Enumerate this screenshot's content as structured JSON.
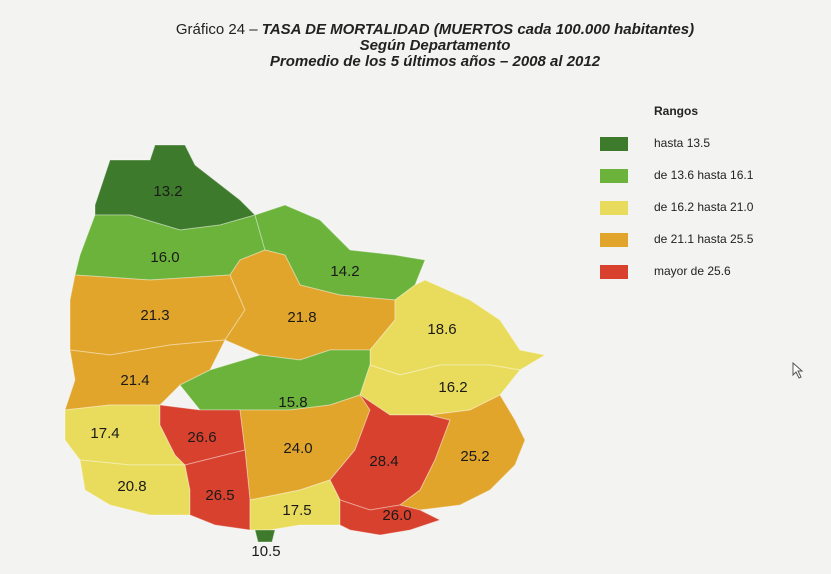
{
  "title": {
    "prefix": "Gráfico 24 –",
    "main": "TASA DE MORTALIDAD (MUERTOS cada 100.000 habitantes)",
    "line2": "Según Departamento",
    "line3": "Promedio de los 5 últimos años – 2008 al 2012"
  },
  "legend": {
    "title": "Rangos",
    "items": [
      {
        "label": "hasta 13.5",
        "color": "#3e7a2c"
      },
      {
        "label": "de 13.6 hasta 16.1",
        "color": "#6cb33c"
      },
      {
        "label": "de 16.2 hasta 21.0",
        "color": "#e9dc5c"
      },
      {
        "label": "de 21.1 hasta 25.5",
        "color": "#e2a52c"
      },
      {
        "label": "mayor de 25.6",
        "color": "#d8412d"
      }
    ]
  },
  "regions": [
    {
      "label": "13.2",
      "value": 13.2,
      "color": "#3e7a2c"
    },
    {
      "label": "16.0",
      "value": 16.0,
      "color": "#6cb33c"
    },
    {
      "label": "14.2",
      "value": 14.2,
      "color": "#6cb33c"
    },
    {
      "label": "21.3",
      "value": 21.3,
      "color": "#e2a52c"
    },
    {
      "label": "21.8",
      "value": 21.8,
      "color": "#e2a52c"
    },
    {
      "label": "18.6",
      "value": 18.6,
      "color": "#e9dc5c"
    },
    {
      "label": "21.4",
      "value": 21.4,
      "color": "#e2a52c"
    },
    {
      "label": "15.8",
      "value": 15.8,
      "color": "#6cb33c"
    },
    {
      "label": "16.2",
      "value": 16.2,
      "color": "#e9dc5c"
    },
    {
      "label": "17.4",
      "value": 17.4,
      "color": "#e9dc5c"
    },
    {
      "label": "26.6",
      "value": 26.6,
      "color": "#d8412d"
    },
    {
      "label": "24.0",
      "value": 24.0,
      "color": "#e2a52c"
    },
    {
      "label": "28.4",
      "value": 28.4,
      "color": "#d8412d"
    },
    {
      "label": "25.2",
      "value": 25.2,
      "color": "#e2a52c"
    },
    {
      "label": "20.8",
      "value": 20.8,
      "color": "#e9dc5c"
    },
    {
      "label": "26.5",
      "value": 26.5,
      "color": "#d8412d"
    },
    {
      "label": "17.5",
      "value": 17.5,
      "color": "#e9dc5c"
    },
    {
      "label": "26.0",
      "value": 26.0,
      "color": "#d8412d"
    },
    {
      "label": "10.5",
      "value": 10.5,
      "color": "#3e7a2c"
    }
  ]
}
